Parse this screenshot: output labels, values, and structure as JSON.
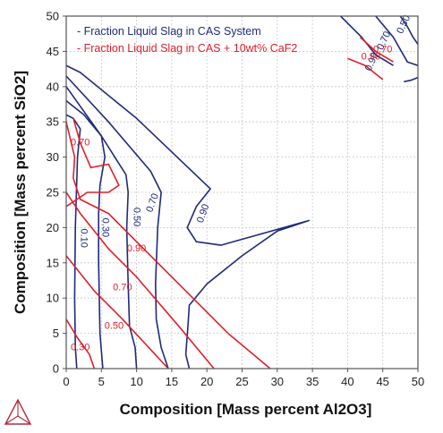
{
  "chart_data": {
    "type": "line",
    "xlabel": "Composition [Mass percent Al2O3]",
    "ylabel": "Composition [Mass percent SiO2]",
    "xlim": [
      0,
      50
    ],
    "ylim": [
      0,
      50
    ],
    "xticks": [
      "0",
      "5",
      "10",
      "15",
      "20",
      "25",
      "30",
      "35",
      "40",
      "45",
      "50"
    ],
    "yticks": [
      "0",
      "5",
      "10",
      "15",
      "20",
      "25",
      "30",
      "35",
      "40",
      "45",
      "50"
    ],
    "grid": true,
    "legend_position": "top-left",
    "colors": {
      "blue": "#1f2a78",
      "red": "#e0202a",
      "grid": "#c8c8c8",
      "logo": "#b22a3c"
    },
    "series": [
      {
        "name": "- Fraction Liquid Slag in CAS System",
        "color": "#1f2a78",
        "curves": [
          {
            "label": "0.10",
            "label_at": [
              2.5,
              18.5
            ],
            "label_rotate": 90,
            "points": [
              [
                1.5,
                0
              ],
              [
                1.3,
                3
              ],
              [
                1.2,
                10
              ],
              [
                1.3,
                20
              ],
              [
                1.6,
                30
              ],
              [
                2.0,
                34
              ],
              [
                1.0,
                35.5
              ],
              [
                0,
                36
              ]
            ]
          },
          {
            "label": "0.30",
            "label_at": [
              5.5,
              20.0
            ],
            "label_rotate": 90,
            "points": [
              [
                5.2,
                0
              ],
              [
                4.8,
                5
              ],
              [
                4.6,
                15
              ],
              [
                4.6,
                22
              ],
              [
                4.8,
                26
              ],
              [
                5.5,
                30
              ],
              [
                5.0,
                33
              ],
              [
                2.5,
                36
              ],
              [
                0,
                38
              ]
            ]
          },
          {
            "label": "0.50",
            "label_at": [
              10.0,
              21.5
            ],
            "label_rotate": 90,
            "points": [
              [
                10,
                0
              ],
              [
                9.8,
                3
              ],
              [
                9.0,
                6
              ],
              [
                8.8,
                12
              ],
              [
                8.6,
                20
              ],
              [
                8.8,
                25
              ],
              [
                8.5,
                27.5
              ],
              [
                5,
                33
              ],
              [
                0,
                40
              ]
            ]
          },
          {
            "label": "0.70",
            "label_at": [
              12.3,
              23.5
            ],
            "label_rotate": -70,
            "points": [
              [
                14.5,
                0
              ],
              [
                13.5,
                3
              ],
              [
                12.8,
                7
              ],
              [
                12.7,
                12
              ],
              [
                13.0,
                20
              ],
              [
                13.5,
                25
              ],
              [
                12.0,
                28
              ],
              [
                6,
                35
              ],
              [
                0,
                41.5
              ]
            ]
          },
          {
            "label": "0.90",
            "label_at": [
              19.5,
              22.0
            ],
            "label_rotate": -70,
            "points": [
              [
                17.5,
                0
              ],
              [
                17.0,
                2
              ],
              [
                17.3,
                6
              ],
              [
                17.5,
                9
              ],
              [
                20,
                12
              ],
              [
                25,
                16
              ],
              [
                30,
                19.5
              ],
              [
                34.5,
                21
              ],
              [
                22,
                17.5
              ],
              [
                18.5,
                18
              ],
              [
                17.2,
                20
              ],
              [
                18.5,
                23
              ],
              [
                20.5,
                25.5
              ],
              [
                10,
                35.5
              ],
              [
                2,
                42
              ],
              [
                0,
                43
              ]
            ]
          },
          {
            "label": "0.90",
            "label_at": [
              43.5,
              43.5
            ],
            "label_rotate": -65,
            "points": [
              [
                39,
                50
              ],
              [
                42,
                47
              ],
              [
                44,
                44.5
              ],
              [
                46.5,
                43
              ]
            ]
          },
          {
            "label": "0.70",
            "label_at": [
              45.2,
              46.5
            ],
            "label_rotate": -65,
            "points": [
              [
                44,
                50
              ],
              [
                46.5,
                47
              ],
              [
                48.5,
                43.5
              ],
              [
                50,
                43
              ]
            ]
          },
          {
            "label": "0.50",
            "label_at": [
              48.0,
              48.8
            ],
            "label_rotate": -65,
            "points": [
              [
                47.5,
                50
              ],
              [
                48.5,
                48.5
              ],
              [
                49.3,
                47
              ],
              [
                50,
                46
              ]
            ]
          },
          {
            "label": "",
            "label_at": [],
            "label_rotate": 0,
            "points": [
              [
                50,
                41.3
              ],
              [
                49,
                40.9
              ],
              [
                48,
                40.7
              ]
            ]
          }
        ]
      },
      {
        "name": "- Fraction Liquid Slag in CAS + 10wt% CaF2",
        "color": "#e0202a",
        "curves": [
          {
            "label": "0.30",
            "label_at": [
              2.0,
              3.0
            ],
            "label_rotate": 0,
            "points": [
              [
                0,
                7
              ],
              [
                1.5,
                4.5
              ],
              [
                3.3,
                2
              ],
              [
                4,
                0
              ]
            ]
          },
          {
            "label": "0.50",
            "label_at": [
              6.8,
              6.0
            ],
            "label_rotate": 0,
            "points": [
              [
                0,
                16
              ],
              [
                4,
                11
              ],
              [
                8,
                7
              ],
              [
                14.5,
                0
              ]
            ]
          },
          {
            "label": "0.70",
            "label_at": [
              8.0,
              11.5
            ],
            "label_rotate": 0,
            "points": [
              [
                0,
                25
              ],
              [
                2,
                22
              ],
              [
                6,
                17
              ],
              [
                10,
                13
              ],
              [
                16,
                6
              ],
              [
                21,
                0
              ]
            ]
          },
          {
            "label": "0.90",
            "label_at": [
              10.0,
              17.0
            ],
            "label_rotate": 0,
            "points": [
              [
                0,
                35
              ],
              [
                1.2,
                30
              ],
              [
                1,
                27
              ],
              [
                2,
                24
              ],
              [
                6,
                22
              ],
              [
                10,
                18
              ],
              [
                16,
                12
              ],
              [
                23,
                5
              ],
              [
                29,
                0
              ]
            ]
          },
          {
            "label": "0.70",
            "label_at": [
              2.0,
              32.0
            ],
            "label_rotate": 0,
            "points": [
              [
                1,
                35.5
              ],
              [
                2,
                32
              ],
              [
                3.5,
                28.5
              ],
              [
                6,
                29
              ],
              [
                7.5,
                26
              ],
              [
                6,
                25
              ],
              [
                3,
                25
              ],
              [
                1.5,
                24
              ],
              [
                0,
                23
              ]
            ]
          },
          {
            "label": "0.70",
            "label_at": [
              45.0,
              45.2
            ],
            "label_rotate": 0,
            "points": [
              [
                41.8,
                47
              ],
              [
                44,
                45
              ],
              [
                46.5,
                43.5
              ]
            ]
          },
          {
            "label": "0.90",
            "label_at": [
              43.3,
              44.2
            ],
            "label_rotate": 0,
            "points": [
              [
                40,
                44
              ],
              [
                42.5,
                43
              ],
              [
                45,
                41
              ]
            ]
          }
        ]
      }
    ]
  }
}
